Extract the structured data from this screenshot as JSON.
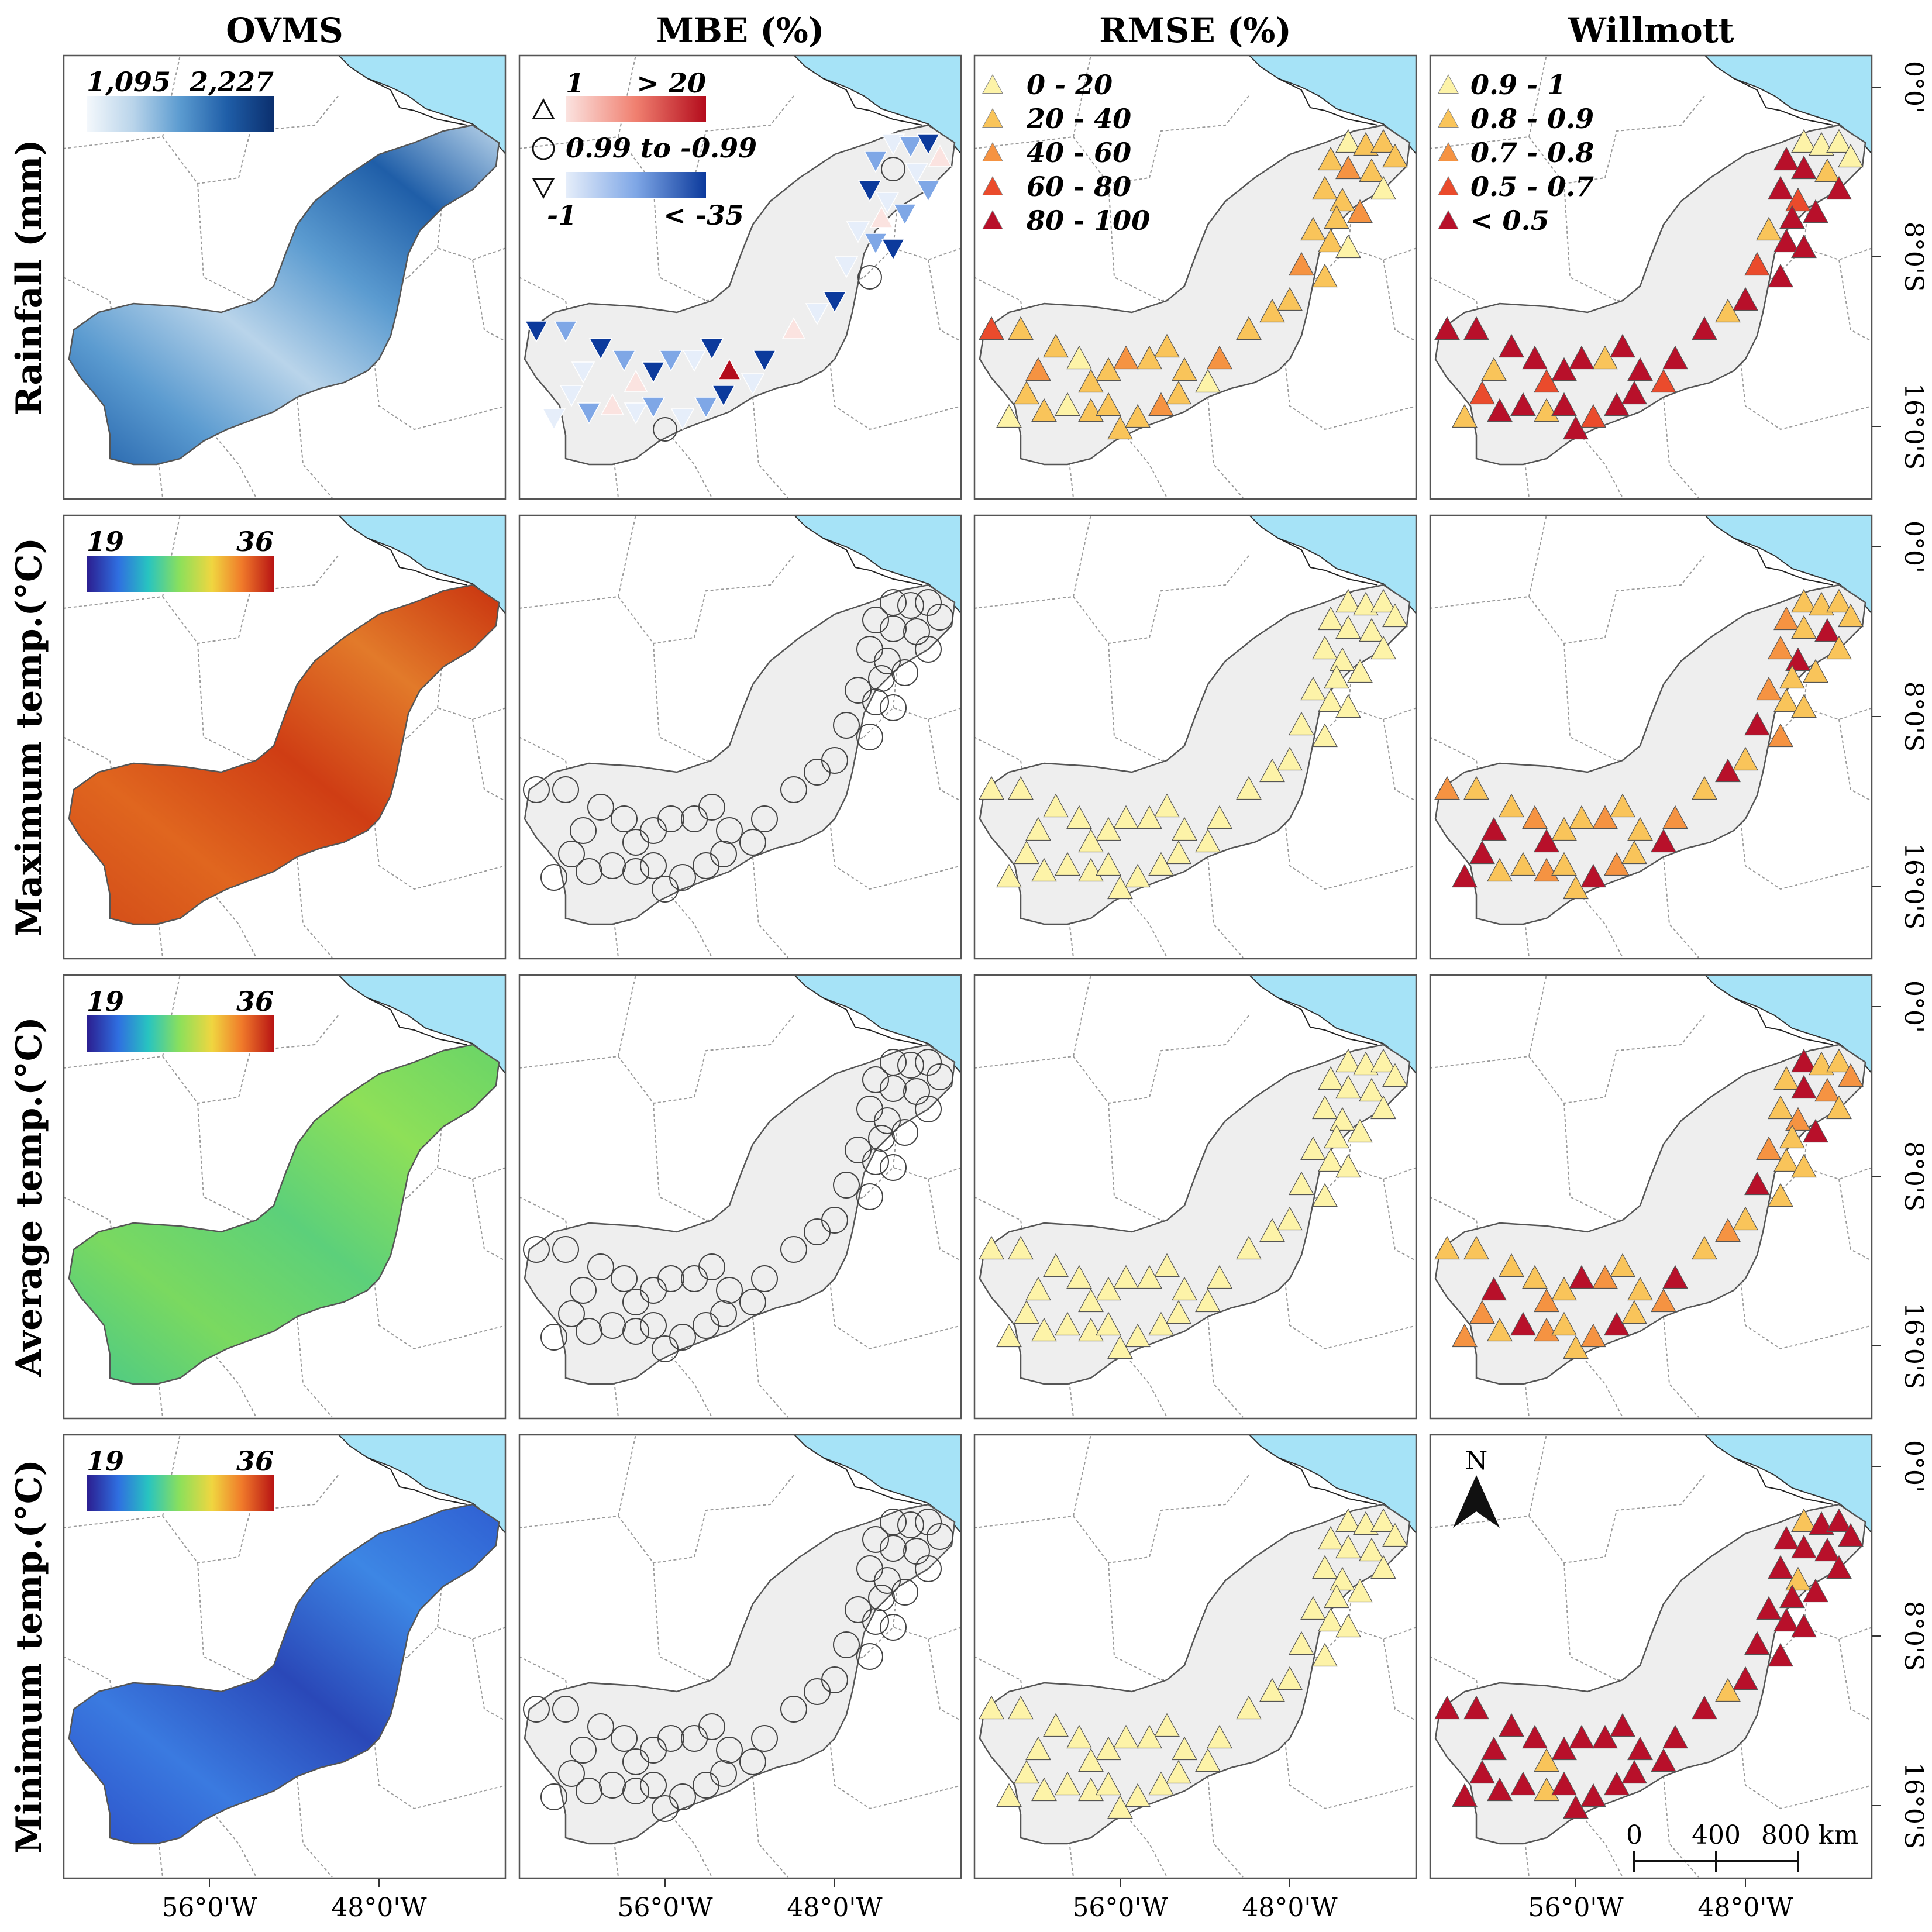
{
  "columns": [
    "OVMS",
    "MBE (%)",
    "RMSE (%)",
    "Willmott"
  ],
  "rows": [
    "Rainfall (mm)",
    "Maximum temp.(°C)",
    "Average temp.(°C)",
    "Minimum  temp.(°C)"
  ],
  "x_ticks": [
    "56°0'W",
    "48°0'W"
  ],
  "y_ticks": [
    "0°0'",
    "8°0'S",
    "16°0'S"
  ],
  "ovms_scales": [
    {
      "min": "1,095",
      "max": "2,227",
      "palette": [
        "#f4f8fc",
        "#b9d4ea",
        "#5b9bd0",
        "#1f5ea8",
        "#0b2f6e"
      ]
    },
    {
      "min": "19",
      "max": "36",
      "palette": [
        "#2b1d8f",
        "#2f6fe0",
        "#28c4c0",
        "#8de05a",
        "#f0d640",
        "#f07a2a",
        "#b81414"
      ]
    },
    {
      "min": "19",
      "max": "36",
      "palette": [
        "#2b1d8f",
        "#2f6fe0",
        "#28c4c0",
        "#8de05a",
        "#f0d640",
        "#f07a2a",
        "#b81414"
      ]
    },
    {
      "min": "19",
      "max": "36",
      "palette": [
        "#2b1d8f",
        "#2f6fe0",
        "#28c4c0",
        "#8de05a",
        "#f0d640",
        "#f07a2a",
        "#b81414"
      ]
    }
  ],
  "ovms_fill": [
    "#4d8fca",
    "#d9541c",
    "#6ed86a",
    "#3570d8"
  ],
  "mbe_legend": {
    "top_min": "1",
    "top_max": "> 20",
    "mid": "0.99 to -0.99",
    "bottom_min": "-1",
    "bottom_max": "< -35",
    "top_colors": [
      "#fbe3e0",
      "#f08070",
      "#b40c1c"
    ],
    "bottom_colors": [
      "#e6eefa",
      "#7fa7e6",
      "#0c3a9c"
    ]
  },
  "rmse_legend": {
    "classes": [
      "0 - 20",
      "20 - 40",
      "40 - 60",
      "60 - 80",
      "80 - 100"
    ],
    "colors": [
      "#fdf3a8",
      "#f9c45a",
      "#f59342",
      "#ea4b2c",
      "#b8102a"
    ]
  },
  "willmott_legend": {
    "classes": [
      "0.9 - 1",
      "0.8 - 0.9",
      "0.7 - 0.8",
      "0.5 - 0.7",
      "< 0.5"
    ],
    "colors": [
      "#fdf3a8",
      "#f9c45a",
      "#f59342",
      "#ea4b2c",
      "#b8102a"
    ]
  },
  "scale_bar": {
    "labels": [
      "0",
      "400",
      "800 km"
    ]
  },
  "north_arrow": "N",
  "colors": {
    "ocean": "#a6e3f7",
    "region": "#eeeeee",
    "border": "#555555"
  }
}
